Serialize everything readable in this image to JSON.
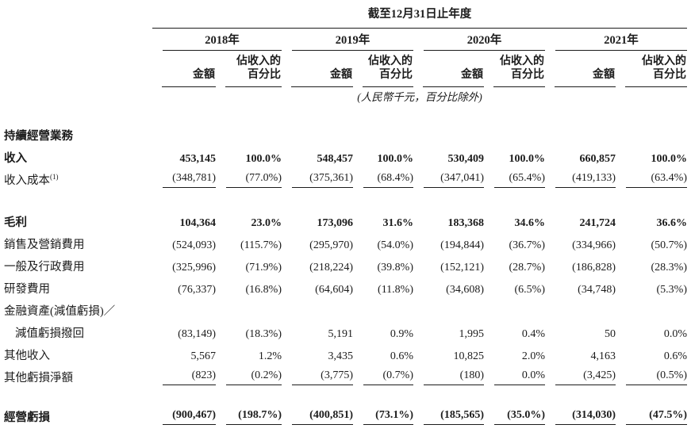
{
  "table": {
    "title": "截至12月31日止年度",
    "note": "(人民幣千元，百分比除外)",
    "years": [
      "2018年",
      "2019年",
      "2020年",
      "2021年"
    ],
    "col_headers": {
      "amount": "金額",
      "percent": [
        "佔收入的",
        "百分比"
      ]
    },
    "rows": [
      {
        "label": "持續經營業務",
        "bold": true,
        "values": []
      },
      {
        "label": "收入",
        "bold": true,
        "bold_values": true,
        "values": [
          "453,145",
          "100.0%",
          "548,457",
          "100.0%",
          "530,409",
          "100.0%",
          "660,857",
          "100.0%"
        ]
      },
      {
        "label": "收入成本",
        "sup": "(1)",
        "underline": true,
        "values": [
          "(348,781)",
          "(77.0%)",
          "(375,361)",
          "(68.4%)",
          "(347,041)",
          "(65.4%)",
          "(419,133)",
          "(63.4%)"
        ]
      },
      {
        "spacer": 25
      },
      {
        "label": "毛利",
        "bold": true,
        "bold_values": true,
        "values": [
          "104,364",
          "23.0%",
          "173,096",
          "31.6%",
          "183,368",
          "34.6%",
          "241,724",
          "36.6%"
        ]
      },
      {
        "label": "銷售及營銷費用",
        "values": [
          "(524,093)",
          "(115.7%)",
          "(295,970)",
          "(54.0%)",
          "(194,844)",
          "(36.7%)",
          "(334,966)",
          "(50.7%)"
        ]
      },
      {
        "label": "一般及行政費用",
        "values": [
          "(325,996)",
          "(71.9%)",
          "(218,224)",
          "(39.8%)",
          "(152,121)",
          "(28.7%)",
          "(186,828)",
          "(28.3%)"
        ]
      },
      {
        "label": "研發費用",
        "values": [
          "(76,337)",
          "(16.8%)",
          "(64,604)",
          "(11.8%)",
          "(34,608)",
          "(6.5%)",
          "(34,748)",
          "(5.3%)"
        ]
      },
      {
        "label": "金融資產(減值虧損)／",
        "values": []
      },
      {
        "label": "減值虧損撥回",
        "indent": true,
        "values": [
          "(83,149)",
          "(18.3%)",
          "5,191",
          "0.9%",
          "1,995",
          "0.4%",
          "50",
          "0.0%"
        ]
      },
      {
        "label": "其他收入",
        "values": [
          "5,567",
          "1.2%",
          "3,435",
          "0.6%",
          "10,825",
          "2.0%",
          "4,163",
          "0.6%"
        ]
      },
      {
        "label": "其他虧損淨額",
        "underline": true,
        "values": [
          "(823)",
          "(0.2%)",
          "(3,775)",
          "(0.7%)",
          "(180)",
          "0.0%",
          "(3,425)",
          "(0.5%)"
        ]
      },
      {
        "spacer": 22
      },
      {
        "label": "經營虧損",
        "bold": true,
        "bold_values": true,
        "underline": true,
        "values": [
          "(900,467)",
          "(198.7%)",
          "(400,851)",
          "(73.1%)",
          "(185,565)",
          "(35.0%)",
          "(314,030)",
          "(47.5%)"
        ]
      }
    ]
  }
}
